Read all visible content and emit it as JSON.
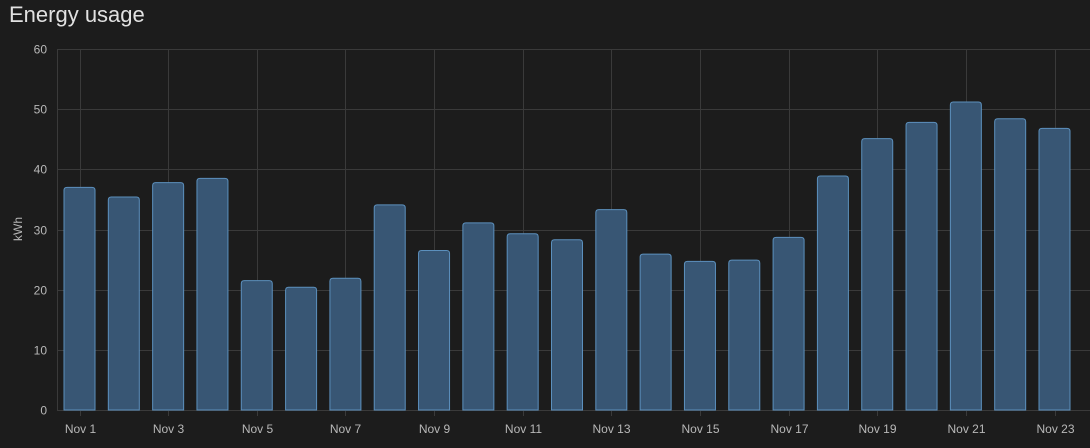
{
  "card": {
    "title": "Energy usage"
  },
  "colors": {
    "background": "#1c1c1c",
    "grid": "#3a3a3a",
    "bar_fill": "#385674",
    "bar_stroke": "#5c90bd",
    "text": "#e1e1e1",
    "tick_text": "#b8b8b8"
  },
  "chart_data": {
    "type": "bar",
    "title": "Energy usage",
    "xlabel": "",
    "ylabel": "kWh",
    "ylim": [
      0,
      60
    ],
    "yticks": [
      0,
      10,
      20,
      30,
      40,
      50,
      60
    ],
    "grid": true,
    "categories": [
      "Nov 1",
      "Nov 2",
      "Nov 3",
      "Nov 4",
      "Nov 5",
      "Nov 6",
      "Nov 7",
      "Nov 8",
      "Nov 9",
      "Nov 10",
      "Nov 11",
      "Nov 12",
      "Nov 13",
      "Nov 14",
      "Nov 15",
      "Nov 16",
      "Nov 17",
      "Nov 18",
      "Nov 19",
      "Nov 20",
      "Nov 21",
      "Nov 22",
      "Nov 23"
    ],
    "xtick_labels": [
      "Nov 1",
      "Nov 3",
      "Nov 5",
      "Nov 7",
      "Nov 9",
      "Nov 11",
      "Nov 13",
      "Nov 15",
      "Nov 17",
      "Nov 19",
      "Nov 21",
      "Nov 23"
    ],
    "values": [
      37.0,
      35.4,
      37.8,
      38.5,
      21.5,
      20.4,
      21.9,
      34.1,
      26.5,
      31.1,
      29.3,
      28.3,
      33.3,
      25.9,
      24.7,
      24.9,
      28.7,
      38.9,
      45.1,
      47.8,
      51.2,
      48.4,
      46.8
    ]
  }
}
